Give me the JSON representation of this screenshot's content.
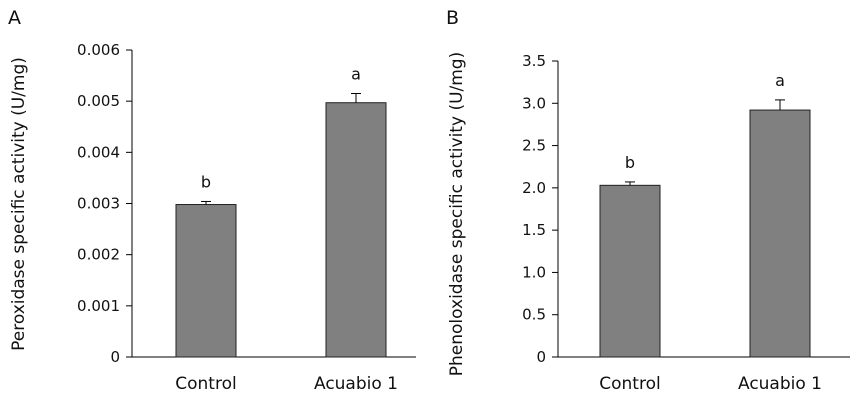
{
  "chart_data": [
    {
      "type": "bar",
      "panel_label": "A",
      "categories": [
        "Control",
        "Acuabio 1"
      ],
      "values": [
        0.00298,
        0.00497
      ],
      "errors": [
        6e-05,
        0.00018
      ],
      "letters": [
        "b",
        "a"
      ],
      "xlabel": "",
      "ylabel": "Peroxidase specific activity (U/mg)",
      "ylim": [
        0,
        0.006
      ],
      "yticks": [
        "0",
        "0.001",
        "0.002",
        "0.003",
        "0.004",
        "0.005",
        "0.006"
      ],
      "grid": false,
      "bar_color": "#808080"
    },
    {
      "type": "bar",
      "panel_label": "B",
      "categories": [
        "Control",
        "Acuabio 1"
      ],
      "values": [
        2.03,
        2.92
      ],
      "errors": [
        0.04,
        0.12
      ],
      "letters": [
        "b",
        "a"
      ],
      "xlabel": "",
      "ylabel": "Phenoloxidase specific activity (U/mg)",
      "ylim": [
        0,
        3.5
      ],
      "yticks": [
        "0",
        "0.5",
        "1.0",
        "1.5",
        "2.0",
        "2.5",
        "3.0",
        "3.5"
      ],
      "grid": false,
      "bar_color": "#808080"
    }
  ]
}
